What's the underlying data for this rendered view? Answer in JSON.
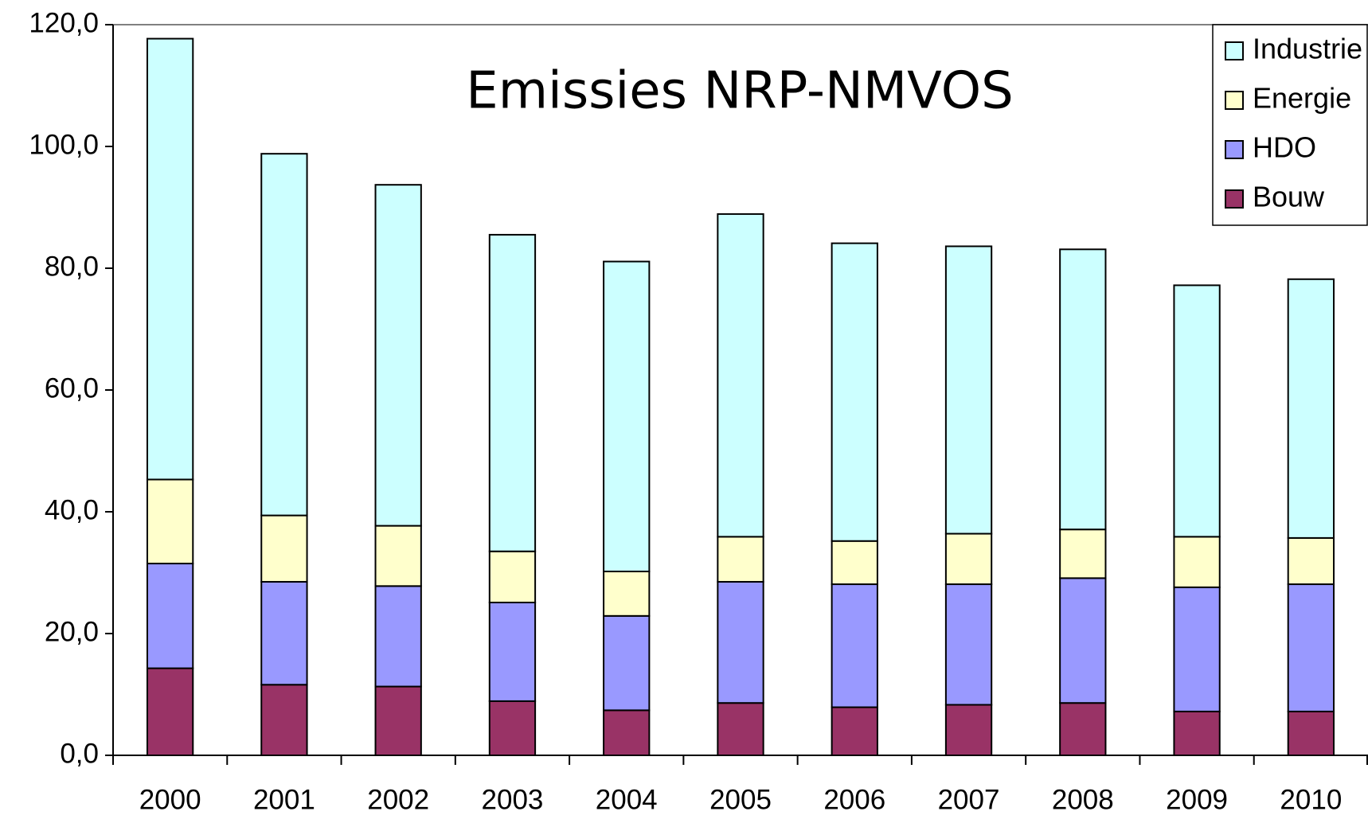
{
  "chart_data": {
    "type": "stacked_bar",
    "title": "Emissies NRP-NMVOS",
    "categories": [
      "2000",
      "2001",
      "2002",
      "2003",
      "2004",
      "2005",
      "2006",
      "2007",
      "2008",
      "2009",
      "2010"
    ],
    "series": [
      {
        "name": "Bouw",
        "color": "#993366",
        "values": [
          14.3,
          11.6,
          11.3,
          8.9,
          7.4,
          8.6,
          7.9,
          8.3,
          8.6,
          7.2,
          7.2
        ]
      },
      {
        "name": "HDO",
        "color": "#9999ff",
        "values": [
          17.2,
          16.9,
          16.5,
          16.2,
          15.5,
          19.9,
          20.2,
          19.8,
          20.5,
          20.4,
          20.9
        ]
      },
      {
        "name": "Energie",
        "color": "#ffffcc",
        "values": [
          13.8,
          10.9,
          9.9,
          8.4,
          7.3,
          7.4,
          7.1,
          8.3,
          8.0,
          8.3,
          7.6
        ]
      },
      {
        "name": "Industrie",
        "color": "#ccffff",
        "values": [
          72.4,
          59.4,
          56.0,
          52.0,
          50.9,
          53.0,
          48.9,
          47.2,
          46.0,
          41.3,
          42.5
        ]
      }
    ],
    "ylim": [
      0,
      120
    ],
    "yticks": [
      {
        "value": 0,
        "label": "0,0"
      },
      {
        "value": 20,
        "label": "20,0"
      },
      {
        "value": 40,
        "label": "40,0"
      },
      {
        "value": 60,
        "label": "60,0"
      },
      {
        "value": 80,
        "label": "80,0"
      },
      {
        "value": 100,
        "label": "100,0"
      },
      {
        "value": 120,
        "label": "120,0"
      }
    ],
    "legend": "top-right"
  }
}
